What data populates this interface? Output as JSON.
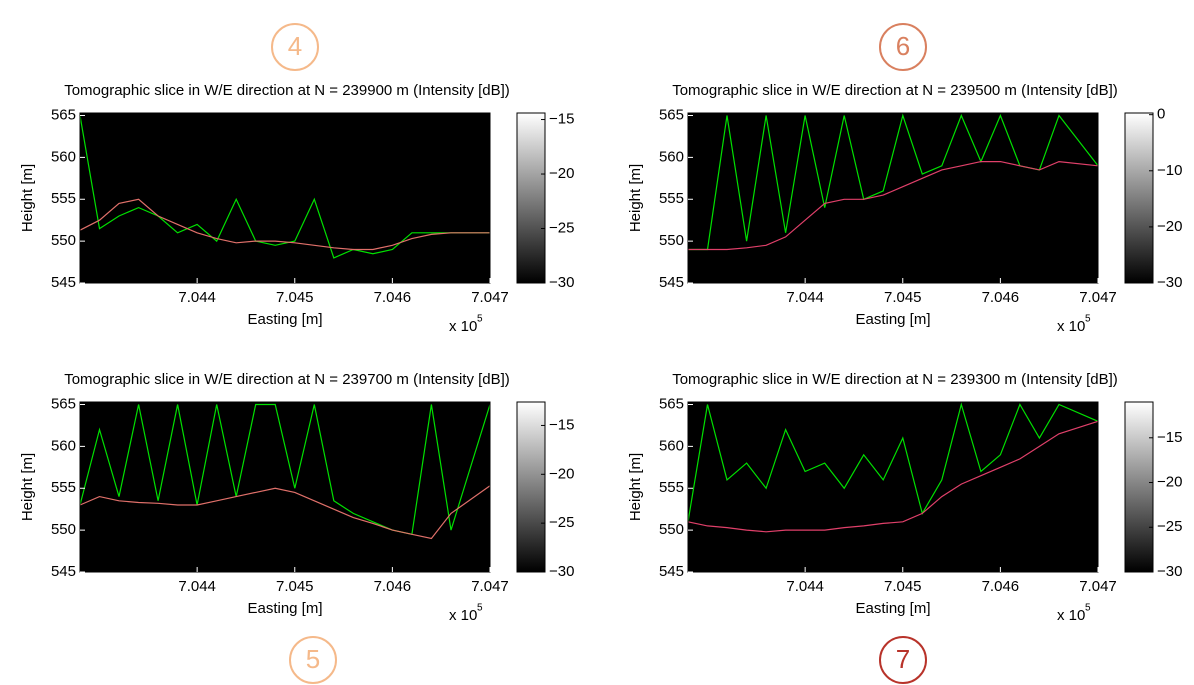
{
  "chart_data": [
    {
      "type": "heatmap",
      "title": "Tomographic slice in W/E direction at N = 239900 m (Intensity [dB])",
      "xlabel": "Easting [m]",
      "ylabel": "Height [m]",
      "x_multiplier": "x 10",
      "x_multiplier_exponent": "5",
      "annotation": "4",
      "annotation_color": "#f5b98a",
      "x": [
        7.0428,
        7.043,
        7.0432,
        7.0434,
        7.0436,
        7.0438,
        7.044,
        7.0442,
        7.0444,
        7.0446,
        7.0448,
        7.045,
        7.0452,
        7.0454,
        7.0456,
        7.0458,
        7.046,
        7.0462,
        7.0464,
        7.0466,
        7.047
      ],
      "series": [
        {
          "color": "#00e000",
          "values": [
            565,
            551.5,
            553,
            554,
            553,
            551,
            552,
            550,
            555,
            550,
            549.5,
            550,
            555,
            548,
            549,
            548.5,
            549,
            551,
            551,
            551,
            551
          ]
        },
        {
          "color": "#e0706a",
          "values": [
            551.3,
            552.5,
            554.5,
            555,
            553,
            552,
            551,
            550.3,
            549.8,
            550,
            550,
            549.8,
            549.5,
            549.2,
            549,
            549,
            549.5,
            550.3,
            550.8,
            551,
            551
          ]
        }
      ],
      "xlim": [
        7.0428,
        7.047
      ],
      "xticks": [
        7.044,
        7.045,
        7.046,
        7.047
      ],
      "ylim": [
        545,
        565.3
      ],
      "yticks": [
        545,
        550,
        555,
        560,
        565
      ],
      "clim": [
        -30,
        -14.4
      ],
      "cticks": [
        {
          "value": -15,
          "label": "−15"
        },
        {
          "value": -20,
          "label": "−20"
        },
        {
          "value": -25,
          "label": "−25"
        },
        {
          "value": -30,
          "label": "−30"
        }
      ]
    },
    {
      "type": "heatmap",
      "title": "Tomographic slice in W/E direction at N = 239500 m (Intensity [dB])",
      "xlabel": "Easting [m]",
      "ylabel": "Height [m]",
      "x_multiplier": "x 10",
      "x_multiplier_exponent": "5",
      "annotation": "6",
      "annotation_color": "#d9805f",
      "x": [
        7.0428,
        7.043,
        7.0432,
        7.0434,
        7.0436,
        7.0438,
        7.044,
        7.0442,
        7.0444,
        7.0446,
        7.0448,
        7.045,
        7.0452,
        7.0454,
        7.0456,
        7.0458,
        7.046,
        7.0462,
        7.0464,
        7.0466,
        7.047
      ],
      "series": [
        {
          "color": "#00e000",
          "values": [
            549,
            549,
            565,
            550,
            565,
            551,
            565,
            554,
            565,
            555,
            556,
            565,
            558,
            559,
            565,
            559.5,
            565,
            559,
            558.5,
            565,
            559
          ]
        },
        {
          "color": "#e0406a",
          "values": [
            549,
            549,
            549,
            549.2,
            549.5,
            550.5,
            552.5,
            554.5,
            555,
            555,
            555.5,
            556.5,
            557.5,
            558.5,
            559,
            559.5,
            559.5,
            559,
            558.5,
            559.5,
            559
          ]
        }
      ],
      "xlim": [
        7.0428,
        7.047
      ],
      "xticks": [
        7.044,
        7.045,
        7.046,
        7.047
      ],
      "ylim": [
        545,
        565.3
      ],
      "yticks": [
        545,
        550,
        555,
        560,
        565
      ],
      "clim": [
        -30,
        0.3
      ],
      "cticks": [
        0,
        {
          "value": -10,
          "label": "−10"
        },
        {
          "value": -20,
          "label": "−20"
        },
        {
          "value": -30,
          "label": "−30"
        }
      ]
    },
    {
      "type": "heatmap",
      "title": "Tomographic slice in W/E direction at N = 239700 m (Intensity [dB])",
      "xlabel": "Easting [m]",
      "ylabel": "Height [m]",
      "x_multiplier": "x 10",
      "x_multiplier_exponent": "5",
      "annotation": "5",
      "annotation_color": "#f5b98a",
      "x": [
        7.0428,
        7.043,
        7.0432,
        7.0434,
        7.0436,
        7.0438,
        7.044,
        7.0442,
        7.0444,
        7.0446,
        7.0448,
        7.045,
        7.0452,
        7.0454,
        7.0456,
        7.0458,
        7.046,
        7.0462,
        7.0464,
        7.0466,
        7.047
      ],
      "series": [
        {
          "color": "#00e000",
          "values": [
            553,
            562,
            554,
            565,
            553.5,
            565,
            553,
            565,
            554,
            565,
            565,
            555,
            565,
            553.5,
            552,
            551,
            550,
            549.5,
            565,
            550,
            565
          ]
        },
        {
          "color": "#e0706a",
          "values": [
            553,
            554,
            553.5,
            553.3,
            553.2,
            553,
            553,
            553.5,
            554,
            554.5,
            555,
            554.5,
            553.5,
            552.5,
            551.5,
            550.8,
            550,
            549.5,
            549,
            552,
            555.3
          ]
        }
      ],
      "xlim": [
        7.0428,
        7.047
      ],
      "xticks": [
        7.044,
        7.045,
        7.046,
        7.047
      ],
      "ylim": [
        545,
        565.3
      ],
      "yticks": [
        545,
        550,
        555,
        560,
        565
      ],
      "clim": [
        -30,
        -12.6
      ],
      "cticks": [
        {
          "value": -15,
          "label": "−15"
        },
        {
          "value": -20,
          "label": "−20"
        },
        {
          "value": -25,
          "label": "−25"
        },
        {
          "value": -30,
          "label": "−30"
        }
      ]
    },
    {
      "type": "heatmap",
      "title": "Tomographic slice in W/E direction at N = 239300 m (Intensity [dB])",
      "xlabel": "Easting [m]",
      "ylabel": "Height [m]",
      "x_multiplier": "x 10",
      "x_multiplier_exponent": "5",
      "annotation": "7",
      "annotation_color": "#b8332a",
      "x": [
        7.0428,
        7.043,
        7.0432,
        7.0434,
        7.0436,
        7.0438,
        7.044,
        7.0442,
        7.0444,
        7.0446,
        7.0448,
        7.045,
        7.0452,
        7.0454,
        7.0456,
        7.0458,
        7.046,
        7.0462,
        7.0464,
        7.0466,
        7.047
      ],
      "series": [
        {
          "color": "#00e000",
          "values": [
            551,
            565,
            556,
            558,
            555,
            562,
            557,
            558,
            555,
            559,
            556,
            561,
            552,
            556,
            565,
            557,
            559,
            565,
            561,
            565,
            563
          ]
        },
        {
          "color": "#e0406a",
          "values": [
            551,
            550.5,
            550.3,
            550,
            549.8,
            550,
            550,
            550,
            550.3,
            550.5,
            550.8,
            551,
            552,
            554,
            555.5,
            556.5,
            557.5,
            558.5,
            560,
            561.5,
            563
          ]
        }
      ],
      "xlim": [
        7.0428,
        7.047
      ],
      "xticks": [
        7.044,
        7.045,
        7.046,
        7.047
      ],
      "ylim": [
        545,
        565.3
      ],
      "yticks": [
        545,
        550,
        555,
        560,
        565
      ],
      "clim": [
        -30,
        -11
      ],
      "cticks": [
        {
          "value": -15,
          "label": "−15"
        },
        {
          "value": -20,
          "label": "−20"
        },
        {
          "value": -25,
          "label": "−25"
        },
        {
          "value": -30,
          "label": "−30"
        }
      ]
    }
  ]
}
